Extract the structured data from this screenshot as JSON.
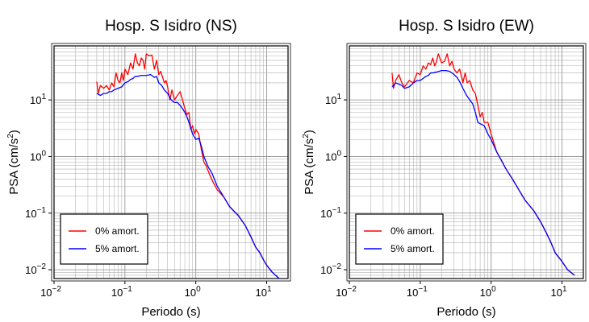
{
  "chart_data": [
    {
      "type": "line",
      "title": "Hosp. S Isidro (NS)",
      "xlabel": "Periodo (s)",
      "ylabel_main": "PSA (cm/s",
      "ylabel_sup": "2",
      "ylabel_end": ")",
      "xscale": "log",
      "yscale": "log",
      "xlim": [
        0.01,
        20
      ],
      "ylim": [
        0.007,
        90
      ],
      "grid": true,
      "legend_position": "bottom-left",
      "x_ticks": [
        {
          "base": "10",
          "exp": "−2"
        },
        {
          "base": "10",
          "exp": "−1"
        },
        {
          "base": "10",
          "exp": "0"
        },
        {
          "base": "10",
          "exp": "1"
        }
      ],
      "y_ticks": [
        {
          "text": "10",
          "sup": "−2"
        },
        {
          "text": "10",
          "sup": "−1"
        },
        {
          "text": "10",
          "sup": "0"
        },
        {
          "text": "10",
          "sup": "1"
        }
      ],
      "series": [
        {
          "name": "0% amort.",
          "color": "#ff0000",
          "x": [
            0.04,
            0.042,
            0.045,
            0.05,
            0.055,
            0.06,
            0.065,
            0.07,
            0.075,
            0.08,
            0.085,
            0.09,
            0.095,
            0.1,
            0.11,
            0.12,
            0.13,
            0.14,
            0.15,
            0.16,
            0.17,
            0.18,
            0.19,
            0.2,
            0.22,
            0.24,
            0.26,
            0.28,
            0.3,
            0.32,
            0.34,
            0.36,
            0.38,
            0.4,
            0.43,
            0.46,
            0.5,
            0.55,
            0.6,
            0.65,
            0.7,
            0.75,
            0.8,
            0.85,
            0.9,
            0.95,
            1.0,
            1.1,
            1.2,
            1.3,
            1.4,
            1.5,
            1.6,
            1.8,
            2.0,
            2.5,
            3.0,
            4.0,
            5.0,
            6.0,
            7.0,
            8.0,
            9.0,
            10.0,
            12.0,
            15.0
          ],
          "y": [
            21,
            13,
            18,
            16,
            18,
            15,
            20,
            17,
            30,
            22,
            20,
            30,
            22,
            35,
            28,
            45,
            35,
            65,
            45,
            40,
            55,
            50,
            35,
            65,
            60,
            62,
            35,
            50,
            28,
            32,
            25,
            20,
            22,
            17,
            10,
            15,
            10,
            12,
            14,
            10,
            7,
            5.5,
            6,
            3,
            3.5,
            2.5,
            3,
            2.5,
            1.3,
            0.8,
            0.68,
            0.55,
            0.45,
            0.33,
            0.26,
            0.19,
            0.13,
            0.09,
            0.06,
            0.038,
            0.025,
            0.02,
            0.015,
            0.012,
            0.009,
            0.007
          ]
        },
        {
          "name": "5% amort.",
          "color": "#0000ff",
          "x": [
            0.04,
            0.045,
            0.05,
            0.055,
            0.06,
            0.065,
            0.07,
            0.08,
            0.09,
            0.1,
            0.11,
            0.12,
            0.13,
            0.14,
            0.15,
            0.17,
            0.2,
            0.23,
            0.26,
            0.28,
            0.3,
            0.33,
            0.36,
            0.4,
            0.45,
            0.5,
            0.55,
            0.6,
            0.65,
            0.7,
            0.75,
            0.8,
            0.9,
            1.0,
            1.1,
            1.2,
            1.3,
            1.5,
            1.7,
            2.0,
            2.5,
            3.0,
            4.0,
            5.0,
            6.0,
            7.0,
            8.0,
            9.0,
            10.0,
            12.0,
            15.0
          ],
          "y": [
            13,
            12,
            13,
            13,
            14,
            14,
            15,
            16,
            17,
            20,
            21,
            23,
            24,
            26,
            26,
            27,
            27,
            28,
            25,
            26,
            20,
            18,
            15,
            13,
            10,
            9,
            9,
            8,
            7,
            6,
            5,
            4,
            2.5,
            2.0,
            2.1,
            1.5,
            1.0,
            0.65,
            0.5,
            0.3,
            0.19,
            0.13,
            0.09,
            0.06,
            0.038,
            0.025,
            0.02,
            0.015,
            0.012,
            0.009,
            0.007
          ]
        }
      ]
    },
    {
      "type": "line",
      "title": "Hosp. S Isidro (EW)",
      "xlabel": "Periodo (s)",
      "ylabel_main": "PSA (cm/s",
      "ylabel_sup": "2",
      "ylabel_end": ")",
      "xscale": "log",
      "yscale": "log",
      "xlim": [
        0.01,
        20
      ],
      "ylim": [
        0.007,
        90
      ],
      "grid": true,
      "legend_position": "bottom-left",
      "x_ticks": [
        {
          "base": "10",
          "exp": "−2"
        },
        {
          "base": "10",
          "exp": "−1"
        },
        {
          "base": "10",
          "exp": "0"
        },
        {
          "base": "10",
          "exp": "1"
        }
      ],
      "y_ticks": [
        {
          "text": "10",
          "sup": "−2"
        },
        {
          "text": "10",
          "sup": "−1"
        },
        {
          "text": "10",
          "sup": "0"
        },
        {
          "text": "10",
          "sup": "1"
        }
      ],
      "series": [
        {
          "name": "0% amort.",
          "color": "#ff0000",
          "x": [
            0.04,
            0.042,
            0.045,
            0.05,
            0.055,
            0.06,
            0.07,
            0.08,
            0.09,
            0.1,
            0.11,
            0.12,
            0.13,
            0.14,
            0.15,
            0.16,
            0.17,
            0.18,
            0.2,
            0.22,
            0.24,
            0.26,
            0.28,
            0.3,
            0.33,
            0.36,
            0.4,
            0.43,
            0.46,
            0.5,
            0.55,
            0.6,
            0.65,
            0.7,
            0.75,
            0.8,
            0.9,
            1.0,
            1.2,
            1.4,
            1.6,
            2.0,
            2.5,
            3.0,
            4.0,
            5.0,
            6.0,
            7.0,
            8.0,
            10.0,
            12.0,
            15.0
          ],
          "y": [
            30,
            16,
            22,
            28,
            20,
            17,
            22,
            20,
            30,
            28,
            40,
            35,
            45,
            42,
            55,
            40,
            48,
            65,
            45,
            48,
            65,
            40,
            48,
            35,
            30,
            35,
            20,
            30,
            20,
            22,
            15,
            13,
            8,
            5,
            6,
            4,
            4,
            2.5,
            1.2,
            0.85,
            0.62,
            0.4,
            0.25,
            0.17,
            0.11,
            0.07,
            0.045,
            0.03,
            0.02,
            0.014,
            0.01,
            0.008
          ]
        },
        {
          "name": "5% amort.",
          "color": "#0000ff",
          "x": [
            0.04,
            0.045,
            0.05,
            0.055,
            0.06,
            0.07,
            0.08,
            0.09,
            0.1,
            0.11,
            0.12,
            0.13,
            0.14,
            0.15,
            0.17,
            0.2,
            0.23,
            0.26,
            0.3,
            0.33,
            0.36,
            0.4,
            0.45,
            0.5,
            0.55,
            0.6,
            0.65,
            0.7,
            0.8,
            0.9,
            1.0,
            1.2,
            1.4,
            1.6,
            2.0,
            2.5,
            3.0,
            4.0,
            5.0,
            6.0,
            7.0,
            8.0,
            10.0,
            12.0,
            15.0
          ],
          "y": [
            17,
            20,
            19,
            18,
            16,
            17,
            20,
            22,
            22,
            24,
            26,
            27,
            30,
            30,
            31,
            33,
            33,
            32,
            28,
            25,
            21,
            16,
            12,
            10,
            8.5,
            6,
            4,
            3.8,
            3.5,
            2.5,
            2.0,
            1.2,
            0.85,
            0.62,
            0.4,
            0.25,
            0.17,
            0.11,
            0.07,
            0.045,
            0.03,
            0.02,
            0.014,
            0.01,
            0.008
          ]
        }
      ]
    }
  ]
}
